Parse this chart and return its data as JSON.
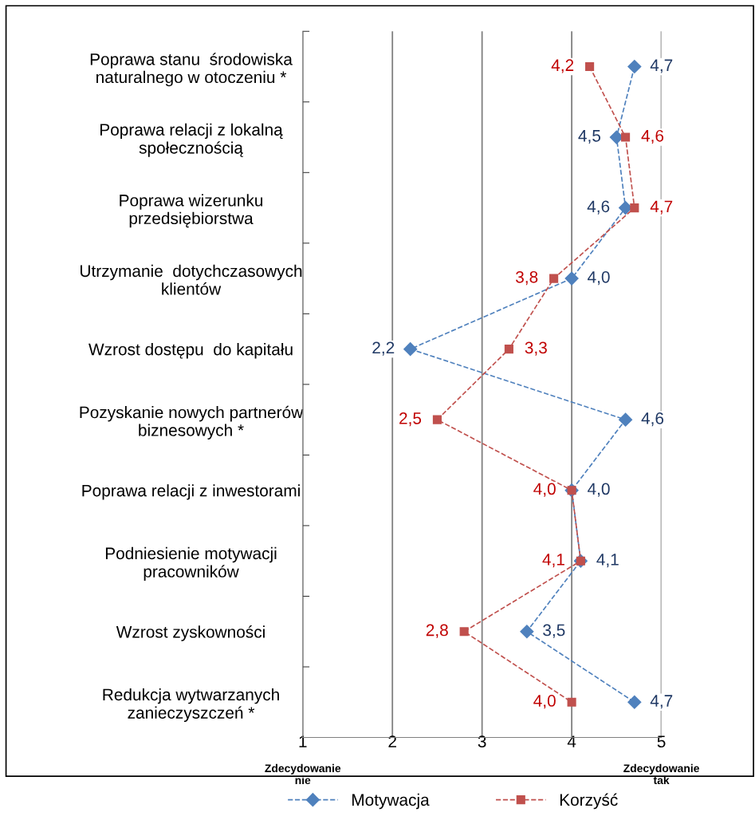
{
  "chart_data": {
    "type": "line",
    "orientation": "horizontal",
    "categories": [
      "Poprawa stanu  środowiska\nnaturalnego w otoczeniu *",
      "Poprawa relacji z lokalną\nspołecznością",
      "Poprawa wizerunku\nprzedsiębiorstwa",
      "Utrzymanie  dotychczasowych\nklientów",
      "Wzrost dostępu  do kapitału",
      "Pozyskanie nowych partnerów\nbiznesowych *",
      "Poprawa relacji z inwestorami",
      "Podniesienie motywacji\npracowników",
      "Wzrost zyskowności",
      "Redukcja wytwarzanych\nzanieczyszczeń *"
    ],
    "series": [
      {
        "name": "Motywacja",
        "color": "#4f81bd",
        "marker": "diamond",
        "values": [
          4.7,
          4.5,
          4.6,
          4.0,
          2.2,
          4.6,
          4.0,
          4.1,
          3.5,
          4.7
        ],
        "value_labels": [
          "4,7",
          "4,5",
          "4,6",
          "4,0",
          "2,2",
          "4,6",
          "4,0",
          "4,1",
          "3,5",
          "4,7"
        ]
      },
      {
        "name": "Korzyść",
        "color": "#c0504d",
        "marker": "square",
        "values": [
          4.2,
          4.6,
          4.7,
          3.8,
          3.3,
          2.5,
          4.0,
          4.1,
          2.8,
          4.0
        ],
        "value_labels": [
          "4,2",
          "4,6",
          "4,7",
          "3,8",
          "3,3",
          "2,5",
          "4,0",
          "4,1",
          "2,8",
          "4,0"
        ]
      }
    ],
    "xlim": [
      1,
      5
    ],
    "xticks": [
      1,
      2,
      3,
      4,
      5
    ],
    "grid": "x",
    "line_style": "dashed",
    "legend": "bottom",
    "annotations": [
      "Zdecydowanie\nnie",
      "Zdecydowanie\ntak"
    ]
  }
}
